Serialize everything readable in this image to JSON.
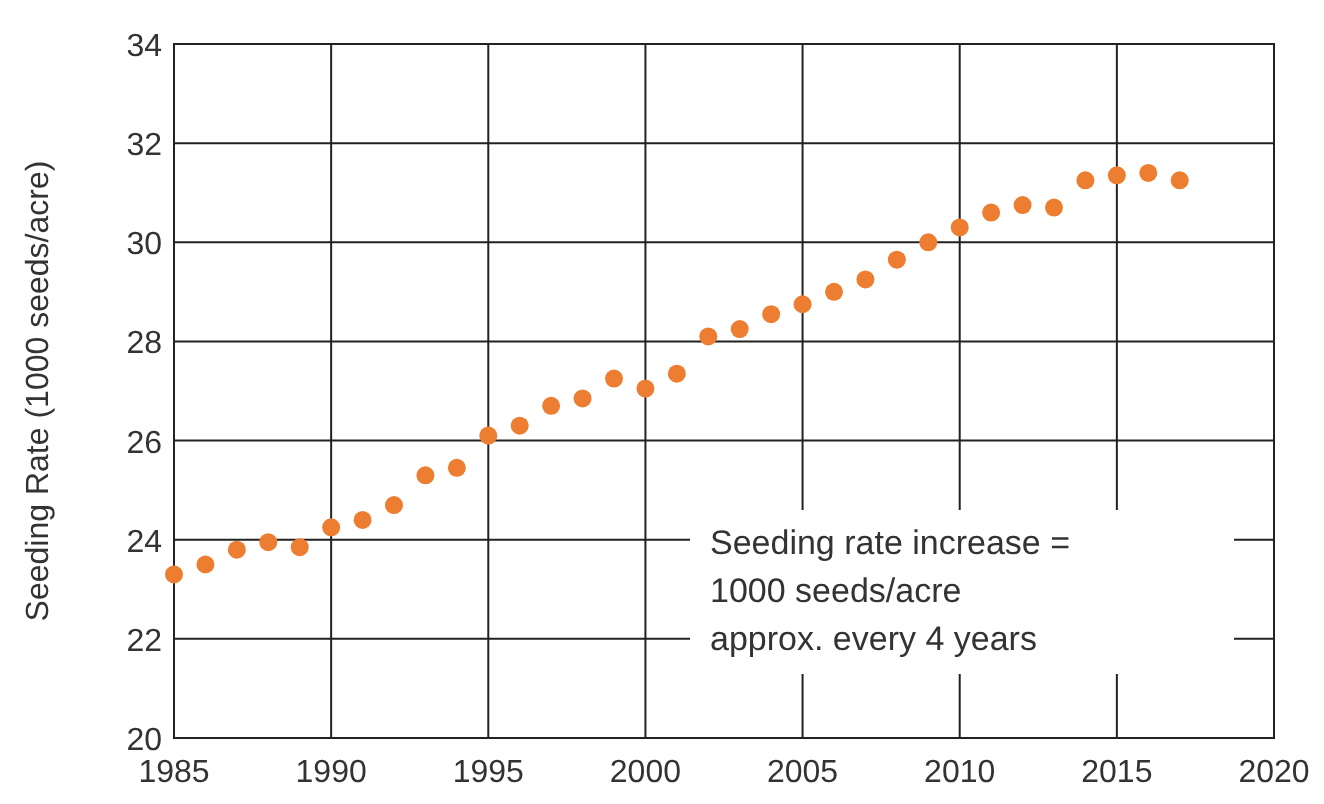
{
  "chart_data": {
    "type": "scatter",
    "ylabel": "Seeding Rate (1000 seeds/acre)",
    "x": [
      1985,
      1986,
      1987,
      1988,
      1989,
      1990,
      1991,
      1992,
      1993,
      1994,
      1995,
      1996,
      1997,
      1998,
      1999,
      2000,
      2001,
      2002,
      2003,
      2004,
      2005,
      2006,
      2007,
      2008,
      2009,
      2010,
      2011,
      2012,
      2013,
      2014,
      2015,
      2016,
      2017
    ],
    "series": [
      {
        "color": "#ed7d31",
        "values": [
          23.3,
          23.5,
          23.8,
          23.95,
          23.85,
          24.25,
          24.4,
          24.7,
          25.3,
          25.45,
          26.1,
          26.3,
          26.7,
          26.85,
          27.25,
          27.05,
          27.35,
          28.1,
          28.25,
          28.55,
          28.75,
          29.0,
          29.25,
          29.65,
          30.0,
          30.3,
          30.6,
          30.75,
          30.7,
          31.25,
          31.35,
          31.4,
          31.25
        ]
      }
    ],
    "xlim": [
      1985,
      2020
    ],
    "xticks": [
      1985,
      1990,
      1995,
      2000,
      2005,
      2010,
      2015,
      2020
    ],
    "ylim": [
      20,
      34
    ],
    "yticks": [
      20,
      22,
      24,
      26,
      28,
      30,
      32,
      34
    ],
    "grid": true,
    "marker": "circle",
    "annotations": [
      "Seeding rate increase =\n1000 seeds/acre\napprox. every 4 years"
    ]
  }
}
